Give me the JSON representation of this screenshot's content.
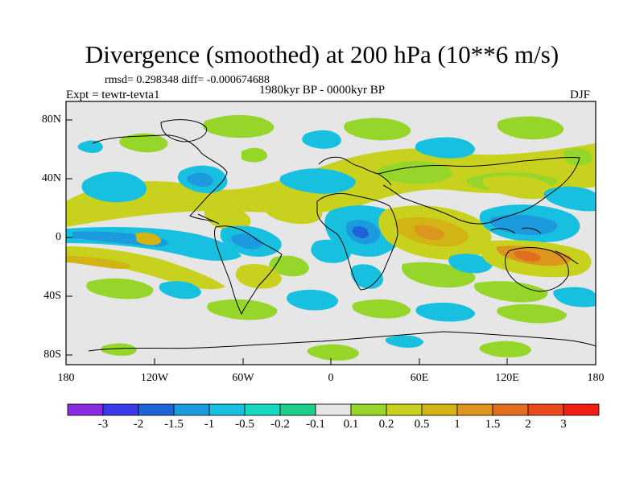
{
  "title": "Divergence (smoothed) at 200 hPa (10**6 m/s)",
  "stats": "rmsd= 0.298348 diff= -0.000674688",
  "experiment": "Expt = tewtr-tevta1",
  "period": "1980kyr BP - 0000kyr BP",
  "season": "DJF",
  "map": {
    "lat_labels": [
      "80N",
      "40N",
      "0",
      "40S",
      "80S"
    ],
    "lon_labels": [
      "180",
      "120W",
      "60W",
      "0",
      "60E",
      "120E",
      "180"
    ]
  },
  "colorbar": {
    "colors": [
      "#8a2be2",
      "#3a3ae8",
      "#1e64d8",
      "#1c9ade",
      "#18c0e0",
      "#16d8c0",
      "#1ecf8a",
      "#e6e6e6",
      "#96d62a",
      "#c8d21e",
      "#d2b414",
      "#dc961e",
      "#e06e1e",
      "#e84a1e",
      "#f01e14"
    ],
    "labels": [
      "-3",
      "-2",
      "-1.5",
      "-1",
      "-0.5",
      "-0.2",
      "-0.1",
      "0.1",
      "0.2",
      "0.5",
      "1",
      "1.5",
      "2",
      "3"
    ]
  },
  "colors": {
    "background": "#e6e6e6",
    "coast": "#000000"
  }
}
